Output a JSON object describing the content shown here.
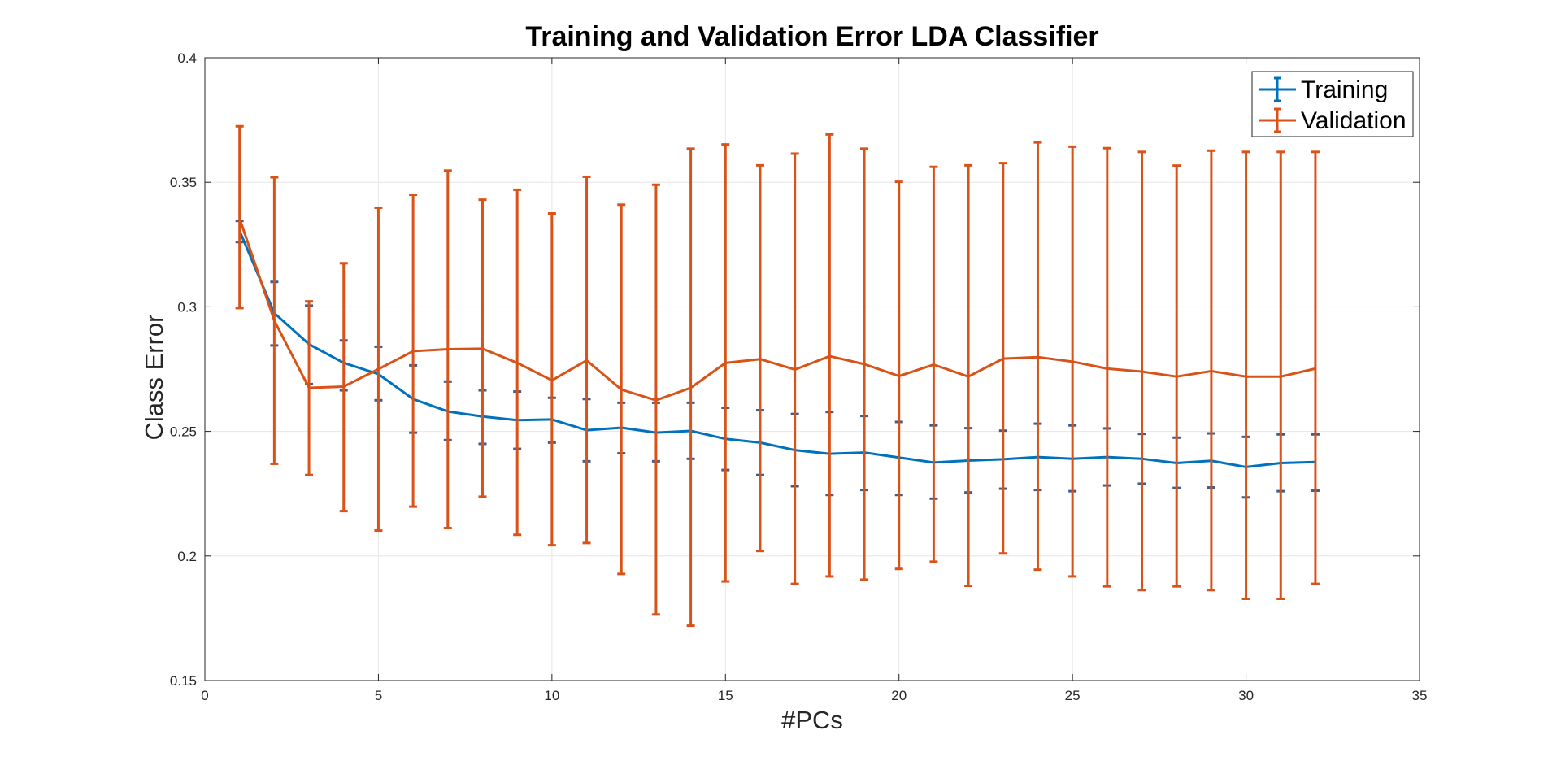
{
  "chart_data": {
    "type": "line",
    "title": "Training and Validation Error LDA Classifier",
    "xlabel": "#PCs",
    "ylabel": "Class Error",
    "xlim": [
      0,
      35
    ],
    "ylim": [
      0.15,
      0.4
    ],
    "xticks": [
      0,
      5,
      10,
      15,
      20,
      25,
      30,
      35
    ],
    "yticks": [
      0.15,
      0.2,
      0.25,
      0.3,
      0.35,
      0.4
    ],
    "xtick_labels": [
      "0",
      "5",
      "10",
      "15",
      "20",
      "25",
      "30",
      "35"
    ],
    "ytick_labels": [
      "0.15",
      "0.2",
      "0.25",
      "0.3",
      "0.35",
      "0.4"
    ],
    "grid": true,
    "legend_position": "top-right",
    "x": [
      1,
      2,
      3,
      4,
      5,
      6,
      7,
      8,
      9,
      10,
      11,
      12,
      13,
      14,
      15,
      16,
      17,
      18,
      19,
      20,
      21,
      22,
      23,
      24,
      25,
      26,
      27,
      28,
      29,
      30,
      31,
      32
    ],
    "series": [
      {
        "name": "Training",
        "color": "#0072BD",
        "values": [
          0.3305,
          0.2975,
          0.285,
          0.2775,
          0.273,
          0.263,
          0.258,
          0.256,
          0.2545,
          0.2548,
          0.2505,
          0.2515,
          0.2495,
          0.2502,
          0.247,
          0.2455,
          0.2425,
          0.241,
          0.2415,
          0.2395,
          0.2375,
          0.2383,
          0.2388,
          0.2397,
          0.239,
          0.2397,
          0.239,
          0.2373,
          0.2382,
          0.2357,
          0.2373,
          0.2377
        ],
        "error_low": [
          0.326,
          0.2845,
          0.269,
          0.2665,
          0.2625,
          0.2495,
          0.2465,
          0.245,
          0.243,
          0.2455,
          0.238,
          0.2412,
          0.238,
          0.239,
          0.2345,
          0.2325,
          0.228,
          0.2245,
          0.2265,
          0.2245,
          0.223,
          0.2255,
          0.227,
          0.2265,
          0.226,
          0.2283,
          0.229,
          0.2273,
          0.2275,
          0.2235,
          0.226,
          0.2262
        ],
        "error_high": [
          0.3345,
          0.31,
          0.3005,
          0.2865,
          0.284,
          0.2765,
          0.27,
          0.2665,
          0.266,
          0.2635,
          0.263,
          0.2615,
          0.2615,
          0.2615,
          0.2595,
          0.2585,
          0.257,
          0.2578,
          0.2562,
          0.2538,
          0.2524,
          0.2513,
          0.2503,
          0.2531,
          0.2524,
          0.2512,
          0.249,
          0.2475,
          0.2492,
          0.2478,
          0.2488,
          0.2488
        ]
      },
      {
        "name": "Validation",
        "color": "#D95319",
        "values": [
          0.3355,
          0.2945,
          0.2675,
          0.268,
          0.275,
          0.2822,
          0.283,
          0.2832,
          0.2775,
          0.2705,
          0.2785,
          0.2668,
          0.2625,
          0.2675,
          0.2775,
          0.279,
          0.2748,
          0.2802,
          0.277,
          0.2722,
          0.2768,
          0.272,
          0.2792,
          0.2798,
          0.278,
          0.2752,
          0.274,
          0.272,
          0.2742,
          0.272,
          0.272,
          0.2752
        ],
        "error_low": [
          0.2995,
          0.237,
          0.2325,
          0.218,
          0.2102,
          0.2198,
          0.2112,
          0.2238,
          0.2085,
          0.2043,
          0.2052,
          0.1928,
          0.1765,
          0.172,
          0.1898,
          0.202,
          0.1888,
          0.1918,
          0.1905,
          0.1948,
          0.1977,
          0.188,
          0.201,
          0.1945,
          0.1918,
          0.1878,
          0.1863,
          0.1878,
          0.1863,
          0.1828,
          0.1828,
          0.1888
        ],
        "error_high": [
          0.3725,
          0.352,
          0.3022,
          0.3175,
          0.3398,
          0.345,
          0.3547,
          0.343,
          0.347,
          0.3375,
          0.3522,
          0.341,
          0.349,
          0.3635,
          0.3652,
          0.3568,
          0.3615,
          0.3692,
          0.3635,
          0.3502,
          0.3562,
          0.3568,
          0.3577,
          0.366,
          0.3643,
          0.3637,
          0.3622,
          0.3567,
          0.3627,
          0.3622,
          0.3622,
          0.3622
        ]
      }
    ]
  },
  "colors": {
    "axis": "#262626",
    "grid": "#e6e6e6"
  }
}
